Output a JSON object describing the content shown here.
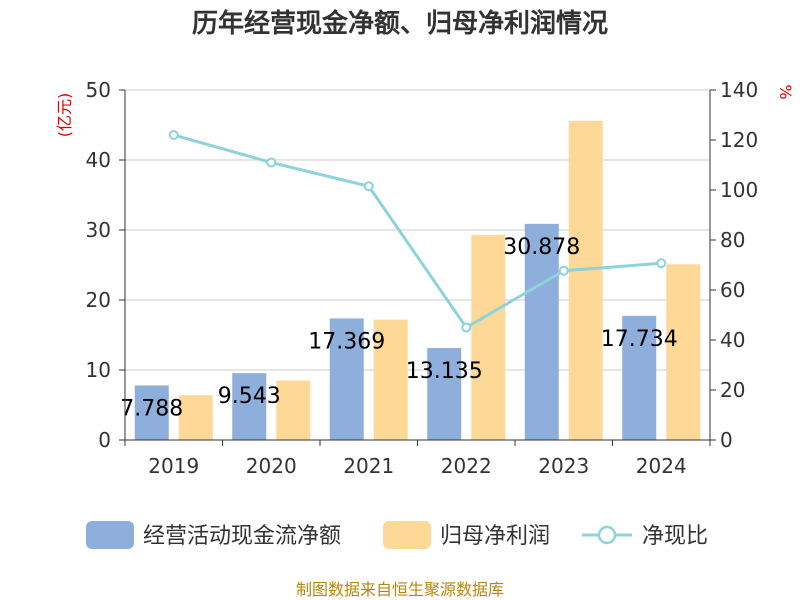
{
  "chart_data": {
    "type": "bar",
    "title": "历年经营现金净额、归母净利润情况",
    "categories": [
      "2019",
      "2020",
      "2021",
      "2022",
      "2023",
      "2024"
    ],
    "series": [
      {
        "name": "经营活动现金流净额",
        "kind": "bar",
        "axis": "left",
        "color": "#8eaedb",
        "values": [
          7.788,
          9.543,
          17.369,
          13.135,
          30.878,
          17.734
        ],
        "data_labels": [
          "7.788",
          "9.543",
          "17.369",
          "13.135",
          "30.878",
          "17.734"
        ]
      },
      {
        "name": "归母净利润",
        "kind": "bar",
        "axis": "left",
        "color": "#fdd896",
        "values": [
          6.4,
          8.5,
          17.2,
          29.3,
          45.6,
          25.1
        ]
      },
      {
        "name": "净现比",
        "kind": "line",
        "axis": "right",
        "color": "#8dd3da",
        "values": [
          122,
          111,
          101.5,
          45,
          67.7,
          70.7
        ]
      }
    ],
    "y_left": {
      "label": "(亿元)",
      "min": 0,
      "max": 50,
      "ticks": [
        0,
        10,
        20,
        30,
        40,
        50
      ]
    },
    "y_right": {
      "label": "%",
      "min": 0,
      "max": 140,
      "ticks": [
        0,
        20,
        40,
        60,
        80,
        100,
        120,
        140
      ]
    },
    "grid": true,
    "legend_position": "bottom"
  },
  "source_note": "制图数据来自恒生聚源数据库"
}
